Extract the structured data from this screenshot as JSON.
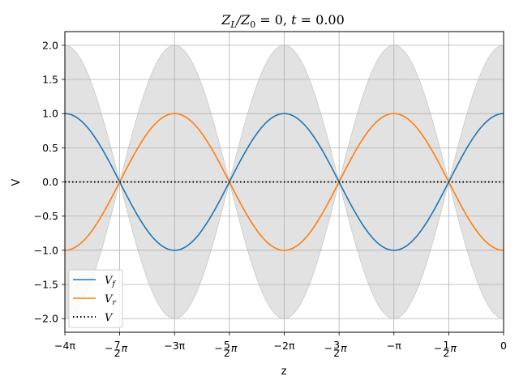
{
  "chart_data": {
    "type": "line",
    "title": "Z_L/Z_0 = 0, t = 0.00",
    "title_parts": {
      "z": "Z",
      "l": "L",
      "slash": "/Z",
      "zero_sub": "0",
      "rest": " = 0, ",
      "t": "t",
      "t_rest": " = 0.00"
    },
    "xlabel": "z",
    "ylabel": "V",
    "xlim": [
      -12.566,
      0
    ],
    "ylim": [
      -2.2,
      2.2
    ],
    "grid": true,
    "legend_position": "lower-left",
    "x_ticks": [
      {
        "value": -12.566,
        "label": "−4π"
      },
      {
        "value": -10.996,
        "label": "−7/2 π"
      },
      {
        "value": -9.425,
        "label": "−3π"
      },
      {
        "value": -7.854,
        "label": "−5/2 π"
      },
      {
        "value": -6.283,
        "label": "−2π"
      },
      {
        "value": -4.712,
        "label": "−3/2 π"
      },
      {
        "value": -3.142,
        "label": "−π"
      },
      {
        "value": -1.571,
        "label": "−1/2 π"
      },
      {
        "value": 0,
        "label": "0"
      }
    ],
    "y_ticks": [
      {
        "value": 2.0,
        "label": "2.0"
      },
      {
        "value": 1.5,
        "label": "1.5"
      },
      {
        "value": 1.0,
        "label": "1.0"
      },
      {
        "value": 0.5,
        "label": "0.5"
      },
      {
        "value": 0.0,
        "label": "0.0"
      },
      {
        "value": -0.5,
        "label": "−0.5"
      },
      {
        "value": -1.0,
        "label": "−1.0"
      },
      {
        "value": -1.5,
        "label": "−1.5"
      },
      {
        "value": -2.0,
        "label": "−2.0"
      }
    ],
    "series": [
      {
        "name": "V_f",
        "name_main": "V",
        "name_sub": "f",
        "color": "#1f77b4",
        "function": "cos(z)",
        "amplitude": 1.0,
        "style": "solid"
      },
      {
        "name": "V_r",
        "name_main": "V",
        "name_sub": "r",
        "color": "#ff7f0e",
        "function": "-cos(z)",
        "amplitude": 1.0,
        "style": "solid"
      },
      {
        "name": "V",
        "name_main": "V",
        "name_sub": "",
        "color": "#000000",
        "function": "0",
        "amplitude": 0.0,
        "style": "dotted"
      }
    ],
    "envelope": {
      "function": "2|cos(z)|",
      "fill": "#d3d3d3",
      "opacity": 0.65
    }
  }
}
